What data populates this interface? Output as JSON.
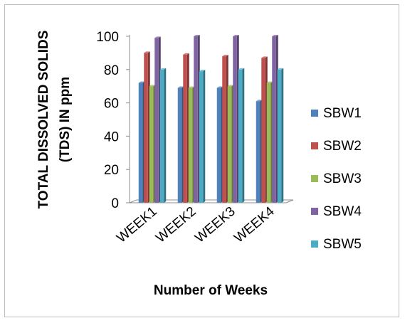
{
  "chart_data": {
    "type": "bar",
    "style": "3d-clustered-column",
    "categories": [
      "WEEK1",
      "WEEK2",
      "WEEK3",
      "WEEK4"
    ],
    "series": [
      {
        "name": "SBW1",
        "color": "#4F81BD",
        "values": [
          72,
          69,
          69,
          61
        ]
      },
      {
        "name": "SBW2",
        "color": "#C0504D",
        "values": [
          90,
          89,
          88,
          87
        ]
      },
      {
        "name": "SBW3",
        "color": "#9BBB59",
        "values": [
          70,
          69,
          70,
          72
        ]
      },
      {
        "name": "SBW4",
        "color": "#8064A2",
        "values": [
          99,
          100,
          100,
          100
        ]
      },
      {
        "name": "SBW5",
        "color": "#4BACC6",
        "values": [
          80,
          79,
          80,
          80
        ]
      }
    ],
    "xlabel": "Number of Weeks",
    "ylabel_line1": "TOTAL DISSOLVED SOLIDS",
    "ylabel_line2": "(TDS) IN ppm",
    "ylim": [
      0,
      100
    ],
    "yticks": [
      0,
      20,
      40,
      60,
      80,
      100
    ],
    "grid": false,
    "legend_position": "right"
  }
}
